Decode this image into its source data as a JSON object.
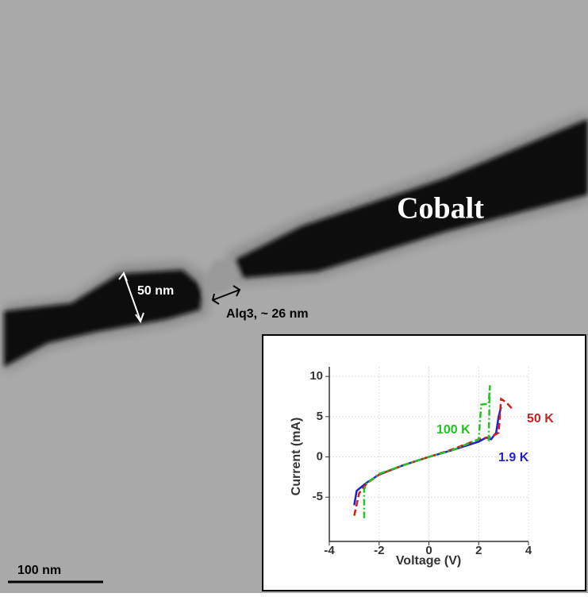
{
  "image": {
    "material_label": "Cobalt",
    "width_label": "50 nm",
    "gap_label": "Alq3, ~ 26 nm",
    "scale_bar_label": "100  nm"
  },
  "chart_data": {
    "type": "line",
    "x_label": "Voltage (V)",
    "y_label": "Current (mA)",
    "xlim": [
      -4,
      4
    ],
    "ylim": [
      -10.5,
      11.2
    ],
    "xticks": [
      -4,
      -2,
      0,
      2,
      4
    ],
    "yticks": [
      -5,
      0,
      5,
      10
    ],
    "grid": true,
    "series": [
      {
        "name": "1.9 K",
        "color": "#1f1fd0",
        "dash": "solid",
        "x": [
          -3,
          -2.9,
          -2.5,
          -2,
          -1,
          0,
          1,
          2,
          2.3,
          2.5,
          2.7,
          2.8,
          2.9
        ],
        "values": [
          -6,
          -4.2,
          -3.2,
          -2.2,
          -1.0,
          0,
          0.9,
          1.9,
          2.4,
          2.2,
          3,
          5,
          6.2
        ]
      },
      {
        "name": "50 K",
        "color": "#d01f1f",
        "dash": "dashed",
        "x": [
          -3.0,
          -2.8,
          -2.5,
          -2,
          -1,
          0,
          1,
          2,
          2.5,
          2.8,
          2.9,
          3.1,
          3.4
        ],
        "values": [
          -7.3,
          -4.5,
          -3.3,
          -2.2,
          -1,
          0,
          1,
          2.2,
          2.5,
          3,
          7.2,
          6.8,
          5.8
        ]
      },
      {
        "name": "100 K",
        "color": "#22c422",
        "dash": "dashdot",
        "x": [
          -2.6,
          -2.6,
          -2.5,
          -2,
          -1,
          0,
          1,
          2,
          2.1,
          2.4,
          2.45,
          2.4,
          2.5
        ],
        "values": [
          -7.6,
          -4,
          -3.3,
          -2.1,
          -1,
          0,
          0.9,
          2.2,
          6.5,
          6.6,
          8.9,
          2,
          2.6
        ]
      }
    ]
  }
}
